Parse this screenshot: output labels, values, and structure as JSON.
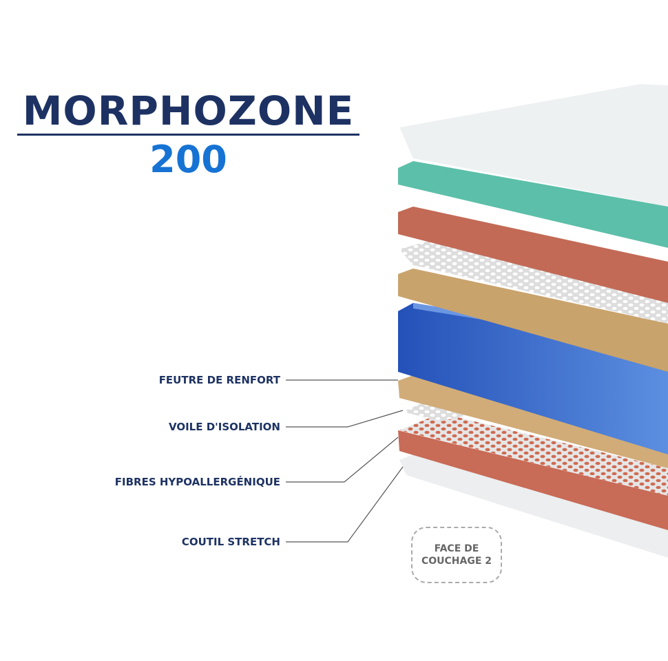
{
  "title": "MORPHOZONE",
  "subtitle": "200",
  "labels": [
    "FEUTRE DE RENFORT",
    "VOILE D'ISOLATION",
    "FIBRES HYPOALLERGÉNIQUE",
    "COUTIL STRETCH"
  ],
  "badge": {
    "line1": "FACE DE",
    "line2": "COUCHAGE 2"
  },
  "colors": {
    "navy": "#1d3263",
    "blue": "#1673d4",
    "teal": "#5bbfa8",
    "red": "#c56a55",
    "tan": "#c8a26c",
    "foam": "#2f63c7",
    "white_layer": "#eef1f2"
  }
}
